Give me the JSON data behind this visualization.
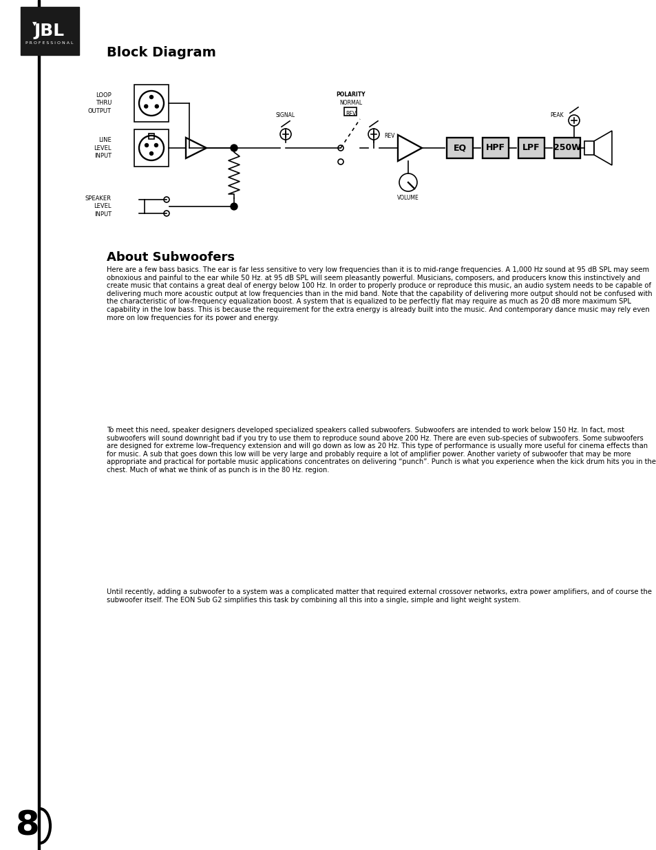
{
  "title": "Block Diagram",
  "section2_title": "About Subwoofers",
  "page_num": "8",
  "bg_color": "#ffffff",
  "text_color": "#000000",
  "paragraph1": "Here are a few bass basics. The ear is far less sensitive to very low frequencies than it is to mid-range frequencies. A 1,000 Hz sound at 95 dB SPL may seem obnoxious and painful to the ear while 50 Hz. at 95 dB SPL will seem pleasantly powerful. Musicians, composers, and producers know this instinctively and create music that contains a great deal of energy below 100 Hz. In order to properly produce or reproduce this music, an audio system needs to be capable of delivering much more acoustic output at low frequencies than in the mid band. Note that the capability of delivering more output should not be confused with the characteristic of low-frequency equalization boost. A system that is equalized to be perfectly flat may require as much as 20 dB more maximum SPL capability in the low bass. This is because the requirement for the extra energy is already built into the music. And contemporary dance music may rely even more on low frequencies for its power and energy.",
  "underline_words_p1": [
    "capability",
    "characteristic",
    "capability"
  ],
  "paragraph2": "To meet this need, speaker designers developed specialized speakers called subwoofers. Subwoofers are intended to work below 150 Hz. In fact, most subwoofers will sound downright bad if you try to use them to reproduce sound above 200 Hz. There are even sub-species of subwoofers. Some subwoofers are designed for extreme low–frequency extension and will go down as low as 20 Hz. This type of performance is usually more useful for cinema effects than for music. A sub that goes down this low will be very large and probably require a lot of amplifier power. Another variety of subwoofer that may be more appropriate and practical for portable music applications concentrates on delivering “punch”. Punch is what you experience when the kick drum hits you in the chest. Much of what we think of as punch is in the 80 Hz. region.",
  "paragraph3": "Until recently, adding a subwoofer to a system was a complicated matter that required external crossover networks, extra power amplifiers, and of course the subwoofer itself. The EON Sub G2 simplifies this task by combining all this into a single, simple and light weight system.",
  "left_bar_color": "#000000",
  "jbl_box_color": "#1a1a1a",
  "diagram_labels": {
    "loop_thru_output": "LOOP\nTHRU\nOUTPUT",
    "line_level_input": "LINE\nLEVEL\nINPUT",
    "speaker_level_input": "SPEAKER\nLEVEL\nINPUT",
    "signal": "SIGNAL",
    "polarity_normal": "POLARITY\nNORMAL",
    "rev": "REV",
    "rev2": "REV",
    "volume": "VOLUME",
    "peak": "PEAK",
    "eq": "EQ",
    "hpf": "HPF",
    "lpf": "LPF",
    "power": "250W"
  }
}
